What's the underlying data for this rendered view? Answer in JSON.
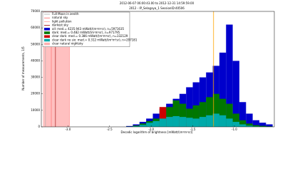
{
  "chart_data": {
    "type": "histogram",
    "title": "2012-06-07 06:00:43.00 to 2012-12-31 14:59:59.00",
    "subtitle": "2012 - IP_Selagaya_1 SessionID:40506",
    "x_label": "Decadic logarithm of brightness [mWatt/(m²m²sr)]",
    "y_label": "Number of measurements, 1/5",
    "xlim": [
      -3.32,
      -0.52
    ],
    "xticks": [
      {
        "value": -3,
        "label": "-3.0"
      },
      {
        "value": -2.5,
        "label": "-2.5"
      },
      {
        "value": -2,
        "label": "-2.0"
      },
      {
        "value": -1.5,
        "label": "-1.5"
      },
      {
        "value": -1,
        "label": "-1.0"
      }
    ],
    "ylim": [
      0,
      70000
    ],
    "yticks": [
      0,
      10000,
      20000,
      30000,
      40000,
      50000,
      60000,
      70000
    ],
    "bins": [
      -2.3,
      -2.22,
      -2.14,
      -2.06,
      -1.98,
      -1.9,
      -1.82,
      -1.74,
      -1.66,
      -1.58,
      -1.5,
      -1.42,
      -1.34,
      -1.26,
      -1.18,
      -1.1,
      -1.02,
      -0.94,
      -0.86,
      -0.78,
      -0.7,
      -0.62,
      -0.54
    ],
    "series": [
      {
        "name": "all: med.= 4235.943 mWatt/(m²m²sr), n=5971635",
        "color": "#0000cc",
        "values": [
          500,
          1500,
          3000,
          5000,
          8000,
          11000,
          14000,
          17000,
          20000,
          24000,
          27000,
          30000,
          33000,
          37000,
          45000,
          62000,
          40000,
          15000,
          8000,
          4000,
          2500,
          1500
        ]
      },
      {
        "name": "dark: med.= 0.482 mWatt/(m²m²sr), n=971795",
        "color": "#007700",
        "values": [
          200,
          800,
          2000,
          3500,
          5000,
          8000,
          12000,
          16000,
          14000,
          11000,
          13000,
          15000,
          18000,
          20000,
          17000,
          14000,
          8000,
          4000,
          2000,
          1000,
          600,
          300
        ]
      },
      {
        "name": "clear dark: med.= 0.386 mWatt/(m²m²sr), n=332129",
        "color": "#cc0000",
        "values": [
          0,
          0,
          500,
          1500,
          3000,
          12000,
          6000,
          4000,
          2500,
          2000,
          1500,
          1500,
          1200,
          1000,
          800,
          600,
          400,
          200,
          100,
          0,
          0,
          0
        ]
      },
      {
        "name": "clear dark no six: med.= 0.312 mWatt/(m²m²sr), n=297181",
        "color": "#00aaaa",
        "values": [
          100,
          400,
          1200,
          2500,
          3500,
          5000,
          6000,
          6500,
          6000,
          5500,
          5000,
          6000,
          7000,
          8000,
          7000,
          5000,
          3000,
          1500,
          700,
          300,
          150,
          50
        ]
      }
    ],
    "reference_lines": [
      {
        "name": "Full Moon in zenith",
        "color": "#aaaaaa",
        "x": -3.27
      },
      {
        "name": "natural sky",
        "color": "#ff6666",
        "x": -3.2
      },
      {
        "name": "light pollution",
        "color": "#ff9999",
        "x": -2.98
      },
      {
        "name": "darkest sky",
        "color": "#990000",
        "x": -3.15
      }
    ],
    "span": {
      "name": "clear natural nightsky",
      "color": "#ffb0b0",
      "x": [
        -3.3,
        -2.98
      ]
    },
    "median_line": {
      "x": -1.25,
      "color": "#ffa500"
    }
  }
}
